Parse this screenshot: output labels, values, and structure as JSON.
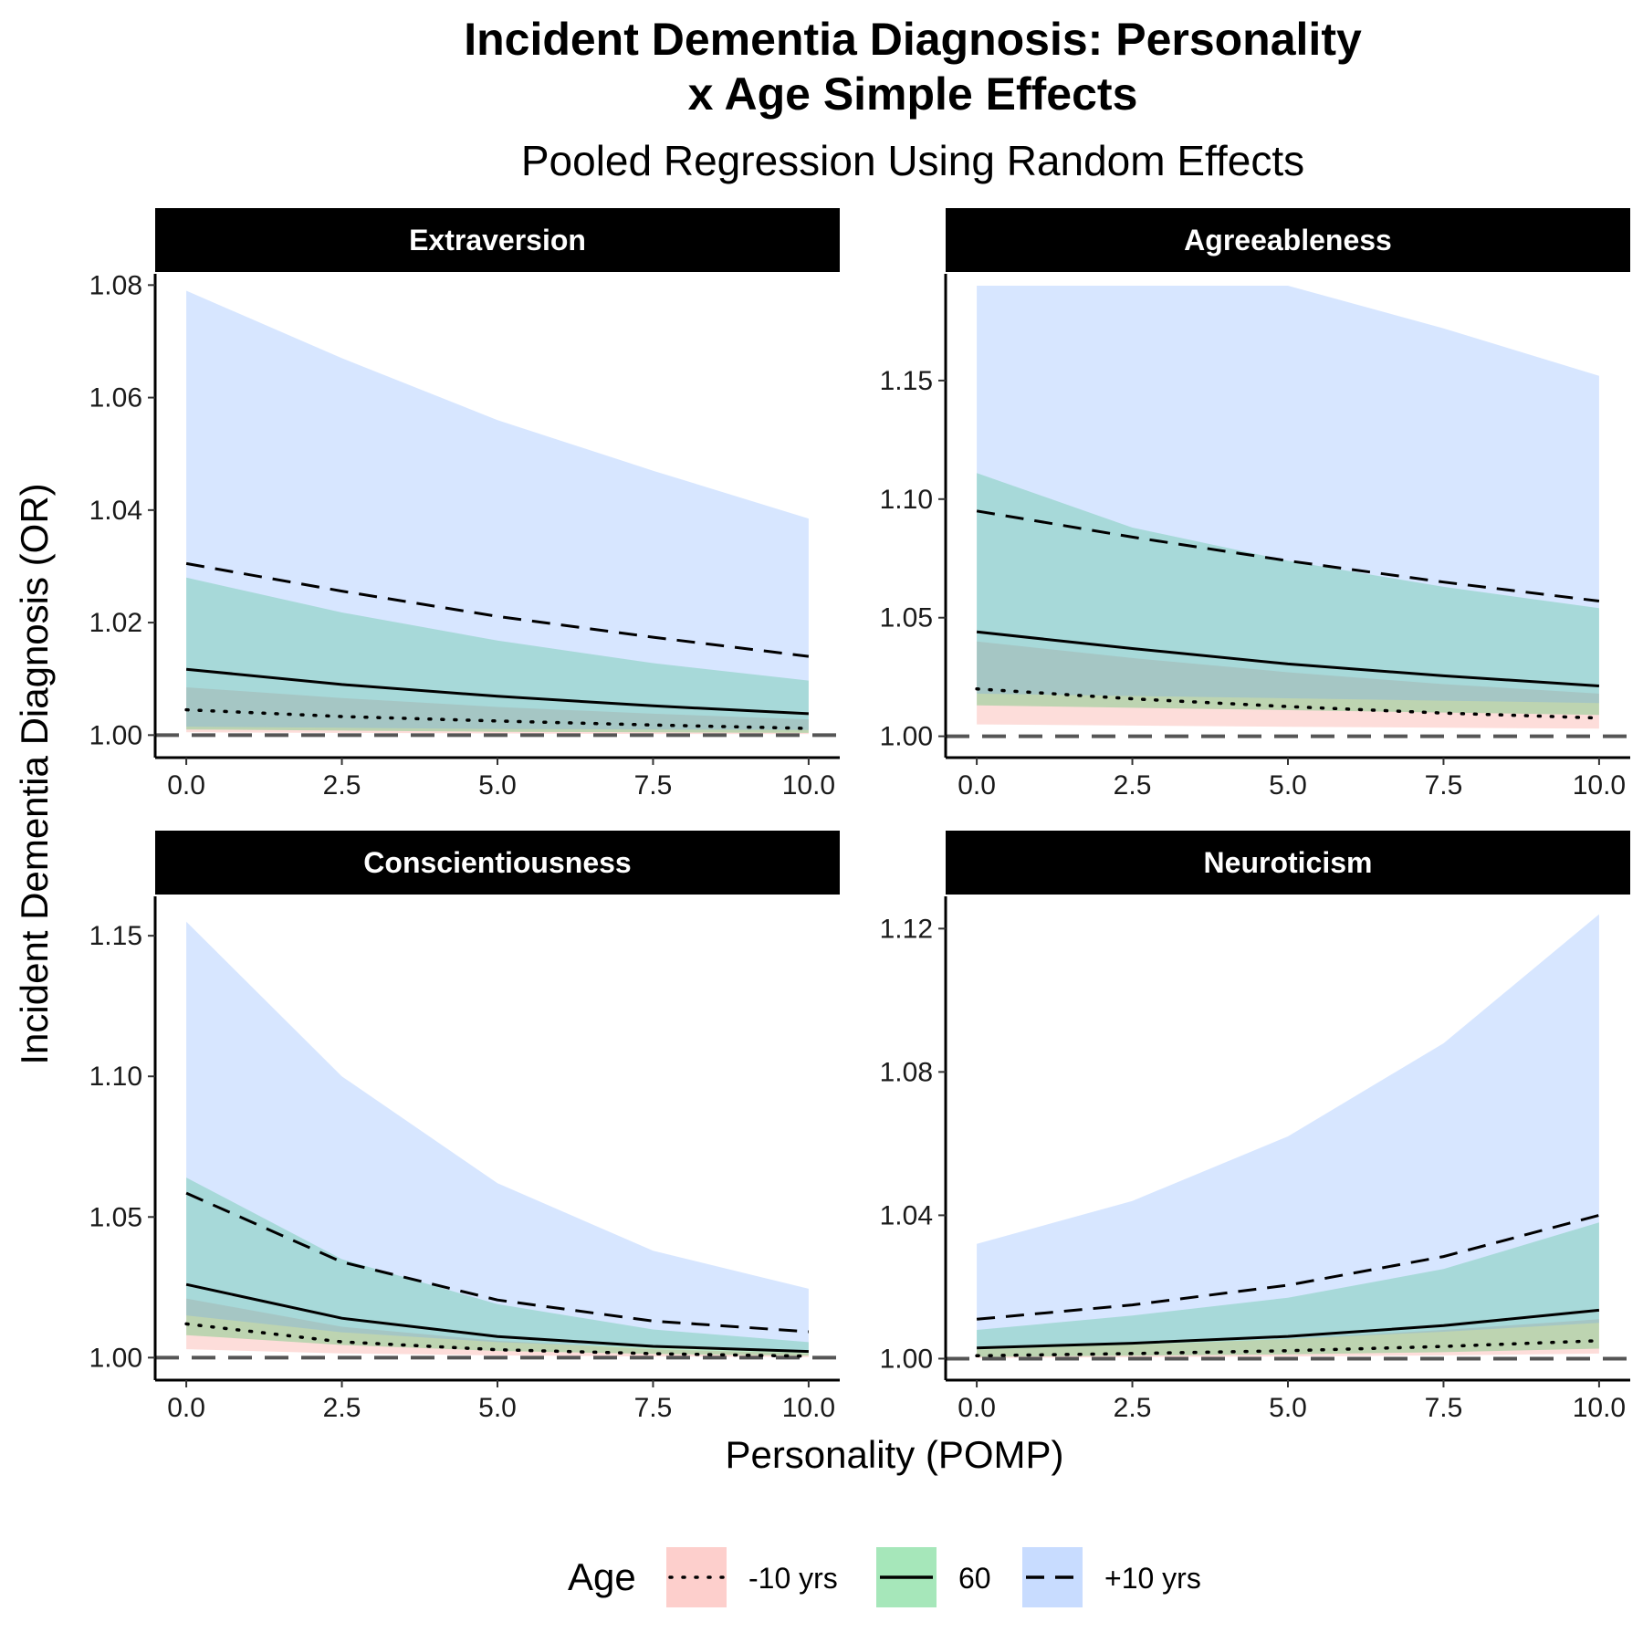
{
  "title_line1": "Incident Dementia Diagnosis: Personality",
  "title_line2": "x Age Simple Effects",
  "subtitle": "Pooled Regression Using Random Effects",
  "xlabel": "Personality (POMP)",
  "ylabel": "Incident Dementia Diagnosis (OR)",
  "legend": {
    "title": "Age",
    "items": [
      {
        "label": "-10 yrs",
        "fill": "#F8766D",
        "line": "dotted"
      },
      {
        "label": "60",
        "fill": "#00BA38",
        "line": "solid"
      },
      {
        "label": "+10 yrs",
        "fill": "#619CFF",
        "line": "dashed"
      }
    ]
  },
  "colors": {
    "ribbon_low": "#F8766D",
    "ribbon_mid": "#00BA38",
    "ribbon_high": "#619CFF",
    "ribbon_alpha": 0.25,
    "reference_line": "#555555",
    "strip_bg": "#000000"
  },
  "chart_data": [
    {
      "type": "line",
      "facet": "Extraversion",
      "x": [
        0,
        2.5,
        5,
        7.5,
        10
      ],
      "xticks": [
        "0.0",
        "2.5",
        "5.0",
        "7.5",
        "10.0"
      ],
      "xlim": [
        -0.5,
        10.5
      ],
      "ylim": [
        0.996,
        1.082
      ],
      "yticks": [
        1.0,
        1.02,
        1.04,
        1.06,
        1.08
      ],
      "yticklabels": [
        "1.00",
        "1.02",
        "1.04",
        "1.06",
        "1.08"
      ],
      "reference_y": 1.0,
      "series": [
        {
          "name": "-10 yrs",
          "values": [
            1.0045,
            1.0033,
            1.0025,
            1.0018,
            1.0012
          ],
          "lower": [
            1.0005,
            1.0004,
            1.0003,
            1.0002,
            1.0002
          ],
          "upper": [
            1.0085,
            1.0066,
            1.005,
            1.0038,
            1.0028
          ]
        },
        {
          "name": "60",
          "values": [
            1.0117,
            1.009,
            1.0069,
            1.0052,
            1.0038
          ],
          "lower": [
            1.001,
            1.0008,
            1.0006,
            1.0005,
            1.0004
          ],
          "upper": [
            1.028,
            1.0218,
            1.0168,
            1.0128,
            1.0097
          ]
        },
        {
          "name": "+10 yrs",
          "values": [
            1.0305,
            1.0256,
            1.0211,
            1.0174,
            1.014
          ],
          "lower": [
            1.0015,
            1.0013,
            1.0011,
            1.001,
            1.0009
          ],
          "upper": [
            1.079,
            1.067,
            1.056,
            1.047,
            1.0385
          ]
        }
      ]
    },
    {
      "type": "line",
      "facet": "Agreeableness",
      "x": [
        0,
        2.5,
        5,
        7.5,
        10
      ],
      "xticks": [
        "0.0",
        "2.5",
        "5.0",
        "7.5",
        "10.0"
      ],
      "xlim": [
        -0.5,
        10.5
      ],
      "ylim": [
        0.991,
        1.195
      ],
      "yticks": [
        1.0,
        1.05,
        1.1,
        1.15
      ],
      "yticklabels": [
        "1.00",
        "1.05",
        "1.10",
        "1.15"
      ],
      "reference_y": 1.0,
      "series": [
        {
          "name": "-10 yrs",
          "values": [
            1.02,
            1.0158,
            1.0125,
            1.0098,
            1.0077
          ],
          "lower": [
            1.005,
            1.0045,
            1.004,
            1.0036,
            1.0032
          ],
          "upper": [
            1.04,
            1.033,
            1.027,
            1.022,
            1.018
          ]
        },
        {
          "name": "60",
          "values": [
            1.044,
            1.037,
            1.0305,
            1.0255,
            1.0212
          ],
          "lower": [
            1.013,
            1.012,
            1.011,
            1.01,
            1.009
          ],
          "upper": [
            1.111,
            1.088,
            1.074,
            1.063,
            1.054
          ]
        },
        {
          "name": "+10 yrs",
          "values": [
            1.095,
            1.084,
            1.074,
            1.065,
            1.057
          ],
          "lower": [
            1.018,
            1.017,
            1.016,
            1.015,
            1.014
          ],
          "upper": [
            1.19,
            1.19,
            1.19,
            1.172,
            1.152
          ]
        }
      ]
    },
    {
      "type": "line",
      "facet": "Conscientiousness",
      "x": [
        0,
        2.5,
        5,
        7.5,
        10
      ],
      "xticks": [
        "0.0",
        "2.5",
        "5.0",
        "7.5",
        "10.0"
      ],
      "xlim": [
        -0.5,
        10.5
      ],
      "ylim": [
        0.992,
        1.164
      ],
      "yticks": [
        1.0,
        1.05,
        1.1,
        1.15
      ],
      "yticklabels": [
        "1.00",
        "1.05",
        "1.10",
        "1.15"
      ],
      "reference_y": 1.0,
      "series": [
        {
          "name": "-10 yrs",
          "values": [
            1.012,
            1.0056,
            1.0028,
            1.0014,
            1.0005
          ],
          "lower": [
            1.003,
            1.0015,
            1.0008,
            1.0004,
            1.0002
          ],
          "upper": [
            1.021,
            1.011,
            1.006,
            1.003,
            1.0015
          ]
        },
        {
          "name": "60",
          "values": [
            1.026,
            1.014,
            1.0075,
            1.004,
            1.0022
          ],
          "lower": [
            1.008,
            1.0045,
            1.0024,
            1.0013,
            1.0007
          ],
          "upper": [
            1.064,
            1.035,
            1.019,
            1.01,
            1.0055
          ]
        },
        {
          "name": "+10 yrs",
          "values": [
            1.0585,
            1.034,
            1.0205,
            1.013,
            1.0092
          ],
          "lower": [
            1.015,
            1.009,
            1.0055,
            1.0035,
            1.0024
          ],
          "upper": [
            1.155,
            1.1,
            1.062,
            1.038,
            1.0245
          ]
        }
      ]
    },
    {
      "type": "line",
      "facet": "Neuroticism",
      "x": [
        0,
        2.5,
        5,
        7.5,
        10
      ],
      "xticks": [
        "0.0",
        "2.5",
        "5.0",
        "7.5",
        "10.0"
      ],
      "xlim": [
        -0.5,
        10.5
      ],
      "ylim": [
        0.994,
        1.129
      ],
      "yticks": [
        1.0,
        1.04,
        1.08,
        1.12
      ],
      "yticklabels": [
        "1.00",
        "1.04",
        "1.08",
        "1.12"
      ],
      "reference_y": 1.0,
      "series": [
        {
          "name": "-10 yrs",
          "values": [
            1.0008,
            1.0014,
            1.0022,
            1.0034,
            1.005
          ],
          "lower": [
            1.0002,
            1.0004,
            1.0006,
            1.0009,
            1.0014
          ],
          "upper": [
            1.0025,
            1.0038,
            1.0055,
            1.008,
            1.011
          ]
        },
        {
          "name": "60",
          "values": [
            1.003,
            1.0043,
            1.0062,
            1.0092,
            1.0135
          ],
          "lower": [
            1.0005,
            1.0008,
            1.0012,
            1.0018,
            1.0028
          ],
          "upper": [
            1.008,
            1.012,
            1.017,
            1.025,
            1.038
          ]
        },
        {
          "name": "+10 yrs",
          "values": [
            1.011,
            1.015,
            1.0205,
            1.0285,
            1.04
          ],
          "lower": [
            1.003,
            1.004,
            1.0055,
            1.0075,
            1.01
          ],
          "upper": [
            1.032,
            1.044,
            1.062,
            1.088,
            1.124
          ]
        }
      ]
    }
  ]
}
